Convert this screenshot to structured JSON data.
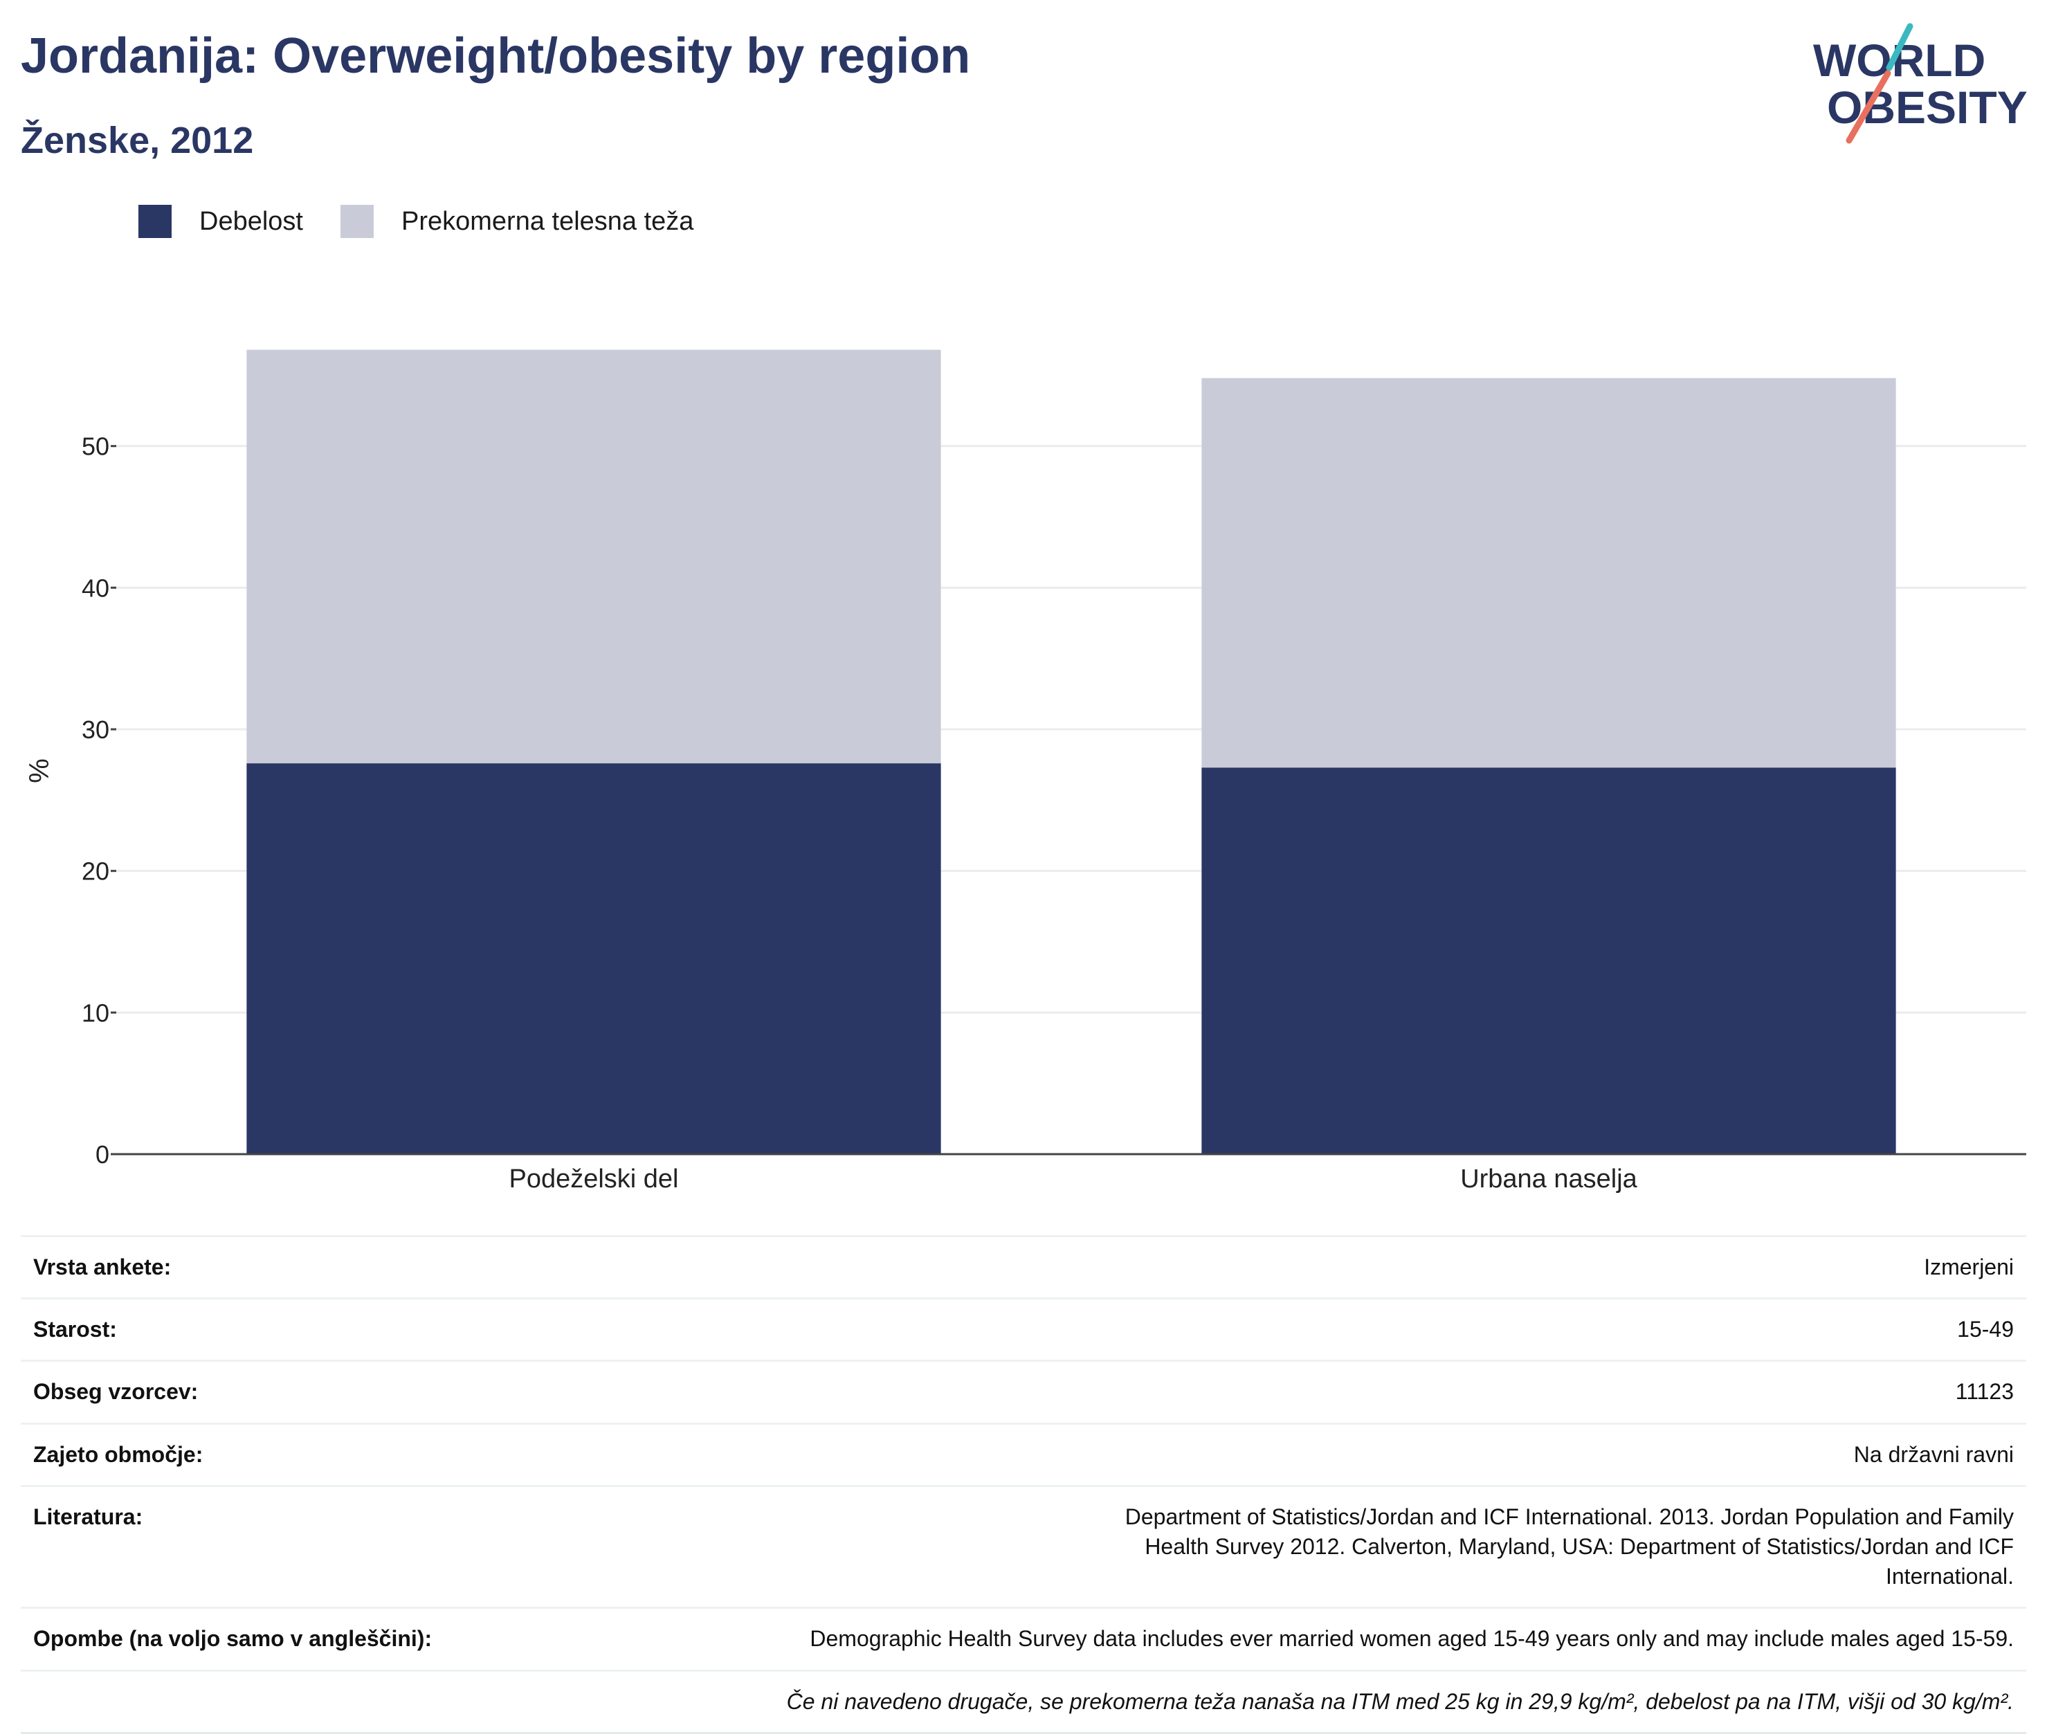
{
  "header": {
    "title": "Jordanija: Overweight/obesity by region",
    "subtitle": "Ženske, 2012"
  },
  "logo": {
    "line1": "WORLD",
    "line2": "OBESITY"
  },
  "colors": {
    "obesity": "#2a3764",
    "overweight": "#c9ccd8",
    "title": "#2a3764",
    "logo_teal": "#3bb8c0",
    "logo_coral": "#e8705e"
  },
  "legend": [
    {
      "label": "Debelost",
      "color": "#2a3764"
    },
    {
      "label": "Prekomerna telesna teža",
      "color": "#c9ccd8"
    }
  ],
  "chart_data": {
    "type": "bar",
    "stacked": true,
    "categories": [
      "Podeželski del",
      "Urbana naselja"
    ],
    "series": [
      {
        "name": "Debelost",
        "values": [
          27.6,
          27.3
        ]
      },
      {
        "name": "Prekomerna telesna teža",
        "values": [
          29.2,
          27.5
        ]
      }
    ],
    "ylabel": "%",
    "ylim": [
      0,
      60
    ],
    "yticks": [
      0,
      10,
      20,
      30,
      40,
      50
    ],
    "grid": true,
    "legend_position": "top-left"
  },
  "meta": {
    "rows": [
      {
        "label": "Vrsta ankete:",
        "value": "Izmerjeni"
      },
      {
        "label": "Starost:",
        "value": "15-49"
      },
      {
        "label": "Obseg vzorcev:",
        "value": "11123"
      },
      {
        "label": "Zajeto območje:",
        "value": "Na državni ravni"
      },
      {
        "label": "Literatura:",
        "value": "Department of Statistics/Jordan and ICF International. 2013. Jordan Population and Family Health Survey 2012. Calverton, Maryland, USA: Department of Statistics/Jordan and ICF International."
      },
      {
        "label": "Opombe (na voljo samo v angleščini):",
        "value": "Demographic Health Survey data includes ever married women aged 15-49 years only and may include males aged 15-59."
      }
    ],
    "footnote": "Če ni navedeno drugače, se prekomerna teža nanaša na ITM med 25 kg in 29,9 kg/m², debelost pa na ITM, višji od 30 kg/m²."
  }
}
